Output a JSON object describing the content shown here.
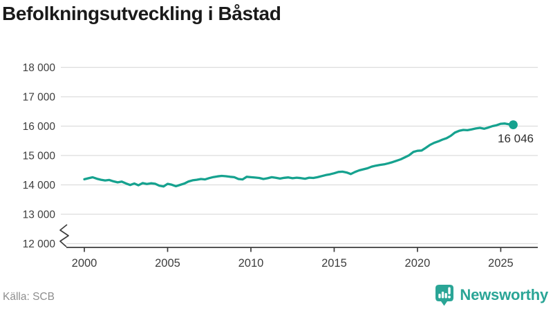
{
  "header": {
    "title": "Befolkningsutveckling i Båstad"
  },
  "footer": {
    "source_label": "Källa: SCB",
    "brand_name": "Newsworthy"
  },
  "colors": {
    "line": "#16a28f",
    "dot": "#16a28f",
    "grid": "#dcdcdc",
    "axis": "#3c3c3c",
    "tick_label": "#3d3d3d",
    "title": "#1a1a1a",
    "source": "#8e8e8e",
    "brand": "#2aa596",
    "end_label": "#2d2d2d",
    "background": "#ffffff"
  },
  "chart_data": {
    "type": "line",
    "title": "Befolkningsutveckling i Båstad",
    "xlabel": "",
    "ylabel": "",
    "legend": "none",
    "grid": "horizontal",
    "axis_break": true,
    "ylim": [
      12000,
      18000
    ],
    "x_ticks": [
      2000,
      2005,
      2010,
      2015,
      2020,
      2025
    ],
    "y_ticks": [
      18000,
      17000,
      16000,
      15000,
      14000,
      13000,
      12000
    ],
    "y_tick_labels": [
      "18 000",
      "17 000",
      "16 000",
      "15 000",
      "14 000",
      "13 000",
      "12 000"
    ],
    "end_label": "16 046",
    "x": [
      2000,
      2000.25,
      2000.5,
      2000.75,
      2001,
      2001.25,
      2001.5,
      2001.75,
      2002,
      2002.25,
      2002.5,
      2002.75,
      2003,
      2003.25,
      2003.5,
      2003.75,
      2004,
      2004.25,
      2004.5,
      2004.75,
      2005,
      2005.25,
      2005.5,
      2005.75,
      2006,
      2006.25,
      2006.5,
      2006.75,
      2007,
      2007.25,
      2007.5,
      2007.75,
      2008,
      2008.25,
      2008.5,
      2008.75,
      2009,
      2009.25,
      2009.5,
      2009.75,
      2010,
      2010.25,
      2010.5,
      2010.75,
      2011,
      2011.25,
      2011.5,
      2011.75,
      2012,
      2012.25,
      2012.5,
      2012.75,
      2013,
      2013.25,
      2013.5,
      2013.75,
      2014,
      2014.25,
      2014.5,
      2014.75,
      2015,
      2015.25,
      2015.5,
      2015.75,
      2016,
      2016.25,
      2016.5,
      2016.75,
      2017,
      2017.25,
      2017.5,
      2017.75,
      2018,
      2018.25,
      2018.5,
      2018.75,
      2019,
      2019.25,
      2019.5,
      2019.75,
      2020,
      2020.25,
      2020.5,
      2020.75,
      2021,
      2021.25,
      2021.5,
      2021.75,
      2022,
      2022.25,
      2022.5,
      2022.75,
      2023,
      2023.25,
      2023.5,
      2023.75,
      2024,
      2024.25,
      2024.5,
      2024.75,
      2025,
      2025.25,
      2025.5,
      2025.75
    ],
    "values": [
      14190,
      14225,
      14258,
      14210,
      14175,
      14150,
      14168,
      14120,
      14085,
      14110,
      14050,
      13995,
      14048,
      13985,
      14060,
      14030,
      14055,
      14038,
      13975,
      13945,
      14035,
      14005,
      13955,
      14000,
      14045,
      14115,
      14155,
      14175,
      14200,
      14185,
      14230,
      14265,
      14290,
      14305,
      14295,
      14275,
      14260,
      14200,
      14185,
      14275,
      14260,
      14250,
      14235,
      14200,
      14225,
      14260,
      14240,
      14215,
      14240,
      14255,
      14225,
      14245,
      14230,
      14210,
      14245,
      14235,
      14260,
      14300,
      14335,
      14360,
      14395,
      14440,
      14450,
      14420,
      14370,
      14440,
      14495,
      14530,
      14565,
      14620,
      14655,
      14680,
      14700,
      14735,
      14775,
      14820,
      14870,
      14940,
      15010,
      15120,
      15160,
      15170,
      15260,
      15360,
      15430,
      15480,
      15540,
      15590,
      15670,
      15780,
      15840,
      15870,
      15860,
      15890,
      15920,
      15940,
      15910,
      15950,
      16000,
      16030,
      16080,
      16090,
      16060,
      16046
    ]
  }
}
